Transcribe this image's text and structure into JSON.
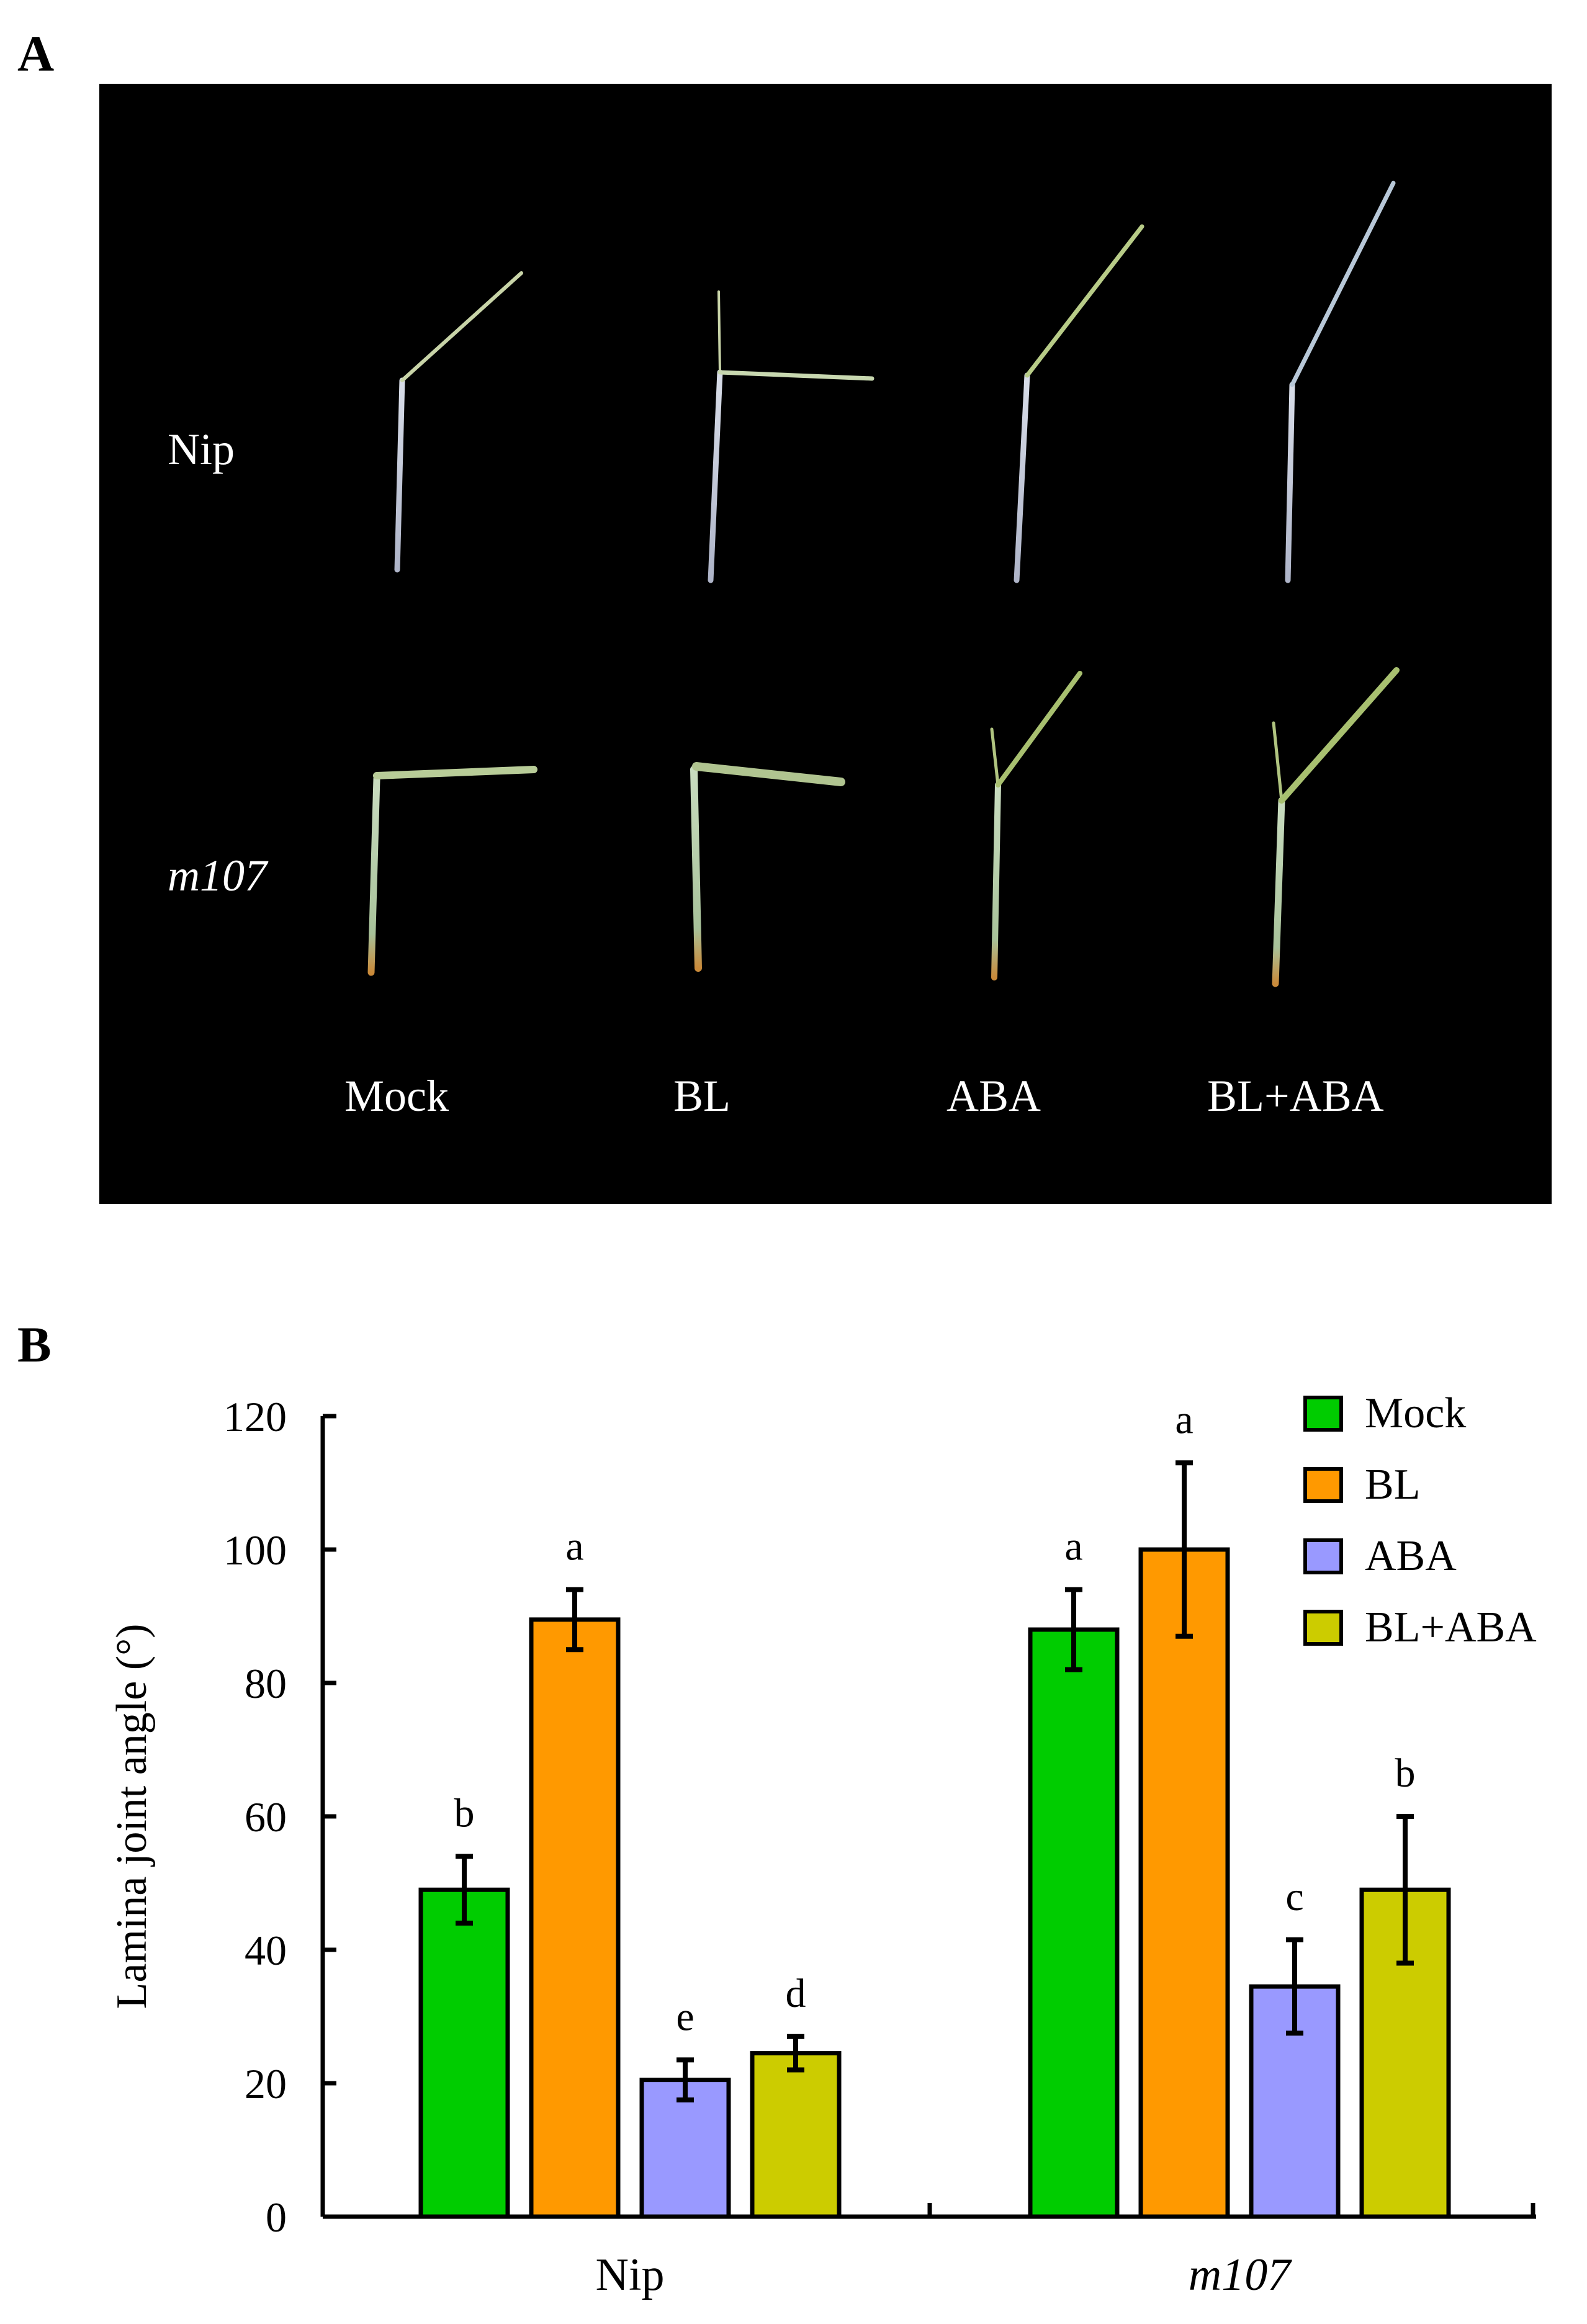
{
  "panels": {
    "a_label": "A",
    "b_label": "B"
  },
  "photo": {
    "row_labels": [
      "Nip",
      "m107"
    ],
    "column_labels": [
      "Mock",
      "BL",
      "ABA",
      "BL+ABA"
    ]
  },
  "chart_data": {
    "type": "bar",
    "title": "",
    "xlabel": "",
    "ylabel": "Lamina joint angle (°)",
    "ylim": [
      0,
      120
    ],
    "yticks": [
      0,
      20,
      40,
      60,
      80,
      100,
      120
    ],
    "categories": [
      "Nip",
      "m107"
    ],
    "grid": false,
    "legend_position": "top-right",
    "series": [
      {
        "name": "Mock",
        "color": "#00cc00",
        "values": [
          49,
          88
        ],
        "errors": [
          5,
          6
        ],
        "letters": [
          "b",
          "a"
        ]
      },
      {
        "name": "BL",
        "color": "#ff9900",
        "values": [
          89.5,
          100
        ],
        "errors": [
          4.5,
          13
        ],
        "letters": [
          "a",
          "a"
        ]
      },
      {
        "name": "ABA",
        "color": "#9999ff",
        "values": [
          20.5,
          34.5
        ],
        "errors": [
          3,
          7
        ],
        "letters": [
          "e",
          "c"
        ]
      },
      {
        "name": "BL+ABA",
        "color": "#cccc00",
        "values": [
          24.5,
          49
        ],
        "errors": [
          2.5,
          11
        ],
        "letters": [
          "d",
          "b"
        ]
      }
    ]
  }
}
